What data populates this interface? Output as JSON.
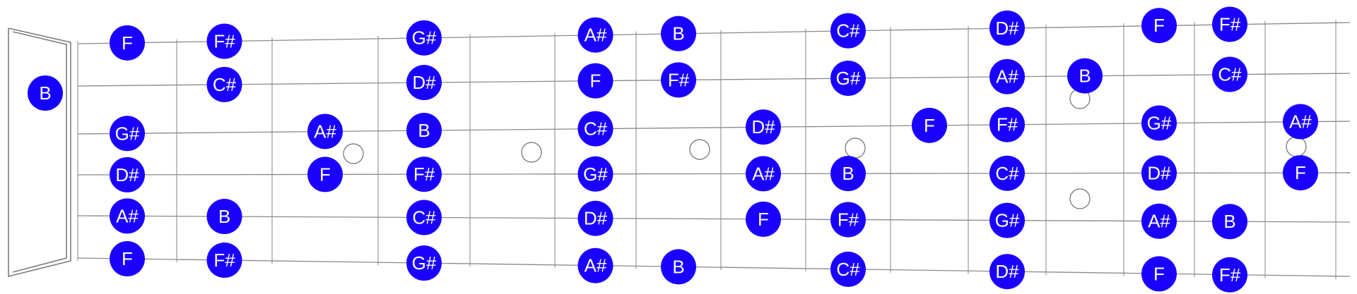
{
  "colors": {
    "note_fill": "#1a00ff",
    "note_text": "#ffffff",
    "line": "#8a8a8a",
    "background": "#ffffff"
  },
  "open_string_marker": "B",
  "fretboard": {
    "strings": [
      "high-e",
      "b",
      "g",
      "d",
      "a",
      "low-e"
    ],
    "fret_count": 15,
    "inlay_frets": [
      3,
      5,
      7,
      9,
      12,
      15,
      17
    ],
    "notes": [
      {
        "string": 0,
        "fret": 1,
        "label": "F"
      },
      {
        "string": 0,
        "fret": 2,
        "label": "F#"
      },
      {
        "string": 0,
        "fret": 4,
        "label": "G#"
      },
      {
        "string": 0,
        "fret": 6,
        "label": "A#"
      },
      {
        "string": 0,
        "fret": 7,
        "label": "B"
      },
      {
        "string": 0,
        "fret": 9,
        "label": "C#"
      },
      {
        "string": 0,
        "fret": 11,
        "label": "D#"
      },
      {
        "string": 0,
        "fret": 13,
        "label": "F"
      },
      {
        "string": 0,
        "fret": 14,
        "label": "F#"
      },
      {
        "string": 1,
        "fret": 2,
        "label": "C#"
      },
      {
        "string": 1,
        "fret": 4,
        "label": "D#"
      },
      {
        "string": 1,
        "fret": 6,
        "label": "F"
      },
      {
        "string": 1,
        "fret": 7,
        "label": "F#"
      },
      {
        "string": 1,
        "fret": 9,
        "label": "G#"
      },
      {
        "string": 1,
        "fret": 11,
        "label": "A#"
      },
      {
        "string": 1,
        "fret": 12,
        "label": "B"
      },
      {
        "string": 1,
        "fret": 14,
        "label": "C#"
      },
      {
        "string": 2,
        "fret": 1,
        "label": "G#"
      },
      {
        "string": 2,
        "fret": 3,
        "label": "A#"
      },
      {
        "string": 2,
        "fret": 4,
        "label": "B"
      },
      {
        "string": 2,
        "fret": 6,
        "label": "C#"
      },
      {
        "string": 2,
        "fret": 8,
        "label": "D#"
      },
      {
        "string": 2,
        "fret": 10,
        "label": "F"
      },
      {
        "string": 2,
        "fret": 11,
        "label": "F#"
      },
      {
        "string": 2,
        "fret": 13,
        "label": "G#"
      },
      {
        "string": 2,
        "fret": 15,
        "label": "A#"
      },
      {
        "string": 3,
        "fret": 1,
        "label": "D#"
      },
      {
        "string": 3,
        "fret": 3,
        "label": "F"
      },
      {
        "string": 3,
        "fret": 4,
        "label": "F#"
      },
      {
        "string": 3,
        "fret": 6,
        "label": "G#"
      },
      {
        "string": 3,
        "fret": 8,
        "label": "A#"
      },
      {
        "string": 3,
        "fret": 9,
        "label": "B"
      },
      {
        "string": 3,
        "fret": 11,
        "label": "C#"
      },
      {
        "string": 3,
        "fret": 13,
        "label": "D#"
      },
      {
        "string": 3,
        "fret": 15,
        "label": "F"
      },
      {
        "string": 4,
        "fret": 1,
        "label": "A#"
      },
      {
        "string": 4,
        "fret": 2,
        "label": "B"
      },
      {
        "string": 4,
        "fret": 4,
        "label": "C#"
      },
      {
        "string": 4,
        "fret": 6,
        "label": "D#"
      },
      {
        "string": 4,
        "fret": 8,
        "label": "F"
      },
      {
        "string": 4,
        "fret": 9,
        "label": "F#"
      },
      {
        "string": 4,
        "fret": 11,
        "label": "G#"
      },
      {
        "string": 4,
        "fret": 13,
        "label": "A#"
      },
      {
        "string": 4,
        "fret": 14,
        "label": "B"
      },
      {
        "string": 5,
        "fret": 1,
        "label": "F"
      },
      {
        "string": 5,
        "fret": 2,
        "label": "F#"
      },
      {
        "string": 5,
        "fret": 4,
        "label": "G#"
      },
      {
        "string": 5,
        "fret": 6,
        "label": "A#"
      },
      {
        "string": 5,
        "fret": 7,
        "label": "B"
      },
      {
        "string": 5,
        "fret": 9,
        "label": "C#"
      },
      {
        "string": 5,
        "fret": 11,
        "label": "D#"
      },
      {
        "string": 5,
        "fret": 13,
        "label": "F"
      },
      {
        "string": 5,
        "fret": 14,
        "label": "F#"
      }
    ]
  }
}
